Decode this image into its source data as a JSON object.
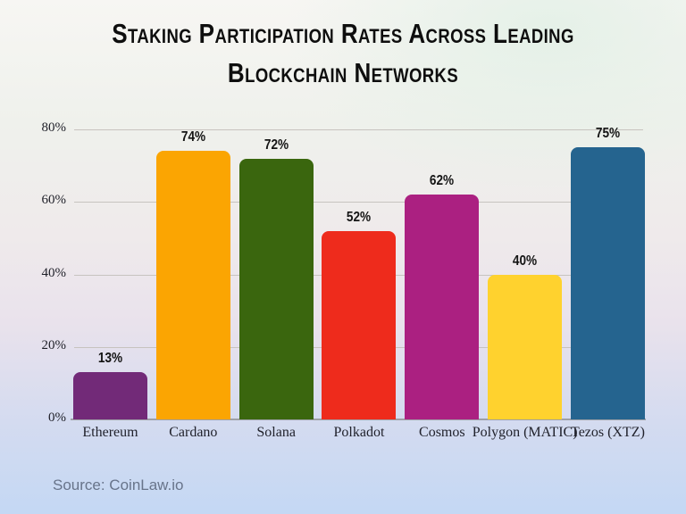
{
  "title": {
    "line1": "Staking Participation Rates Across Leading",
    "line2": "Blockchain Networks"
  },
  "source_note": "Source: CoinLaw.io",
  "chart_data": {
    "type": "bar",
    "title": "Staking Participation Rates Across Leading Blockchain Networks",
    "categories": [
      "Ethereum",
      "Cardano",
      "Solana",
      "Polkadot",
      "Cosmos",
      "Polygon (MATIC)",
      "Tezos (XTZ)"
    ],
    "values": [
      13,
      74,
      72,
      52,
      62,
      40,
      75
    ],
    "value_labels": [
      "13%",
      "74%",
      "72%",
      "52%",
      "62%",
      "40%",
      "75%"
    ],
    "bar_colors": [
      "#722A78",
      "#FBA502",
      "#3A660E",
      "#EE2B1C",
      "#AB2081",
      "#FFD22E",
      "#25648F"
    ],
    "xlabel": "",
    "ylabel": "",
    "ylim": [
      0,
      80
    ],
    "yticks": [
      0,
      20,
      40,
      60,
      80
    ],
    "ytick_labels": [
      "0%",
      "20%",
      "40%",
      "60%",
      "80%"
    ],
    "grid": true,
    "legend": false,
    "colors": {
      "gridline": "#C7C3BF",
      "axis_line": "#9EA0A6",
      "title_text": "#0E0E0E",
      "axis_text": "#21222C",
      "value_text": "#141414",
      "source_text": "#68748A",
      "background_top": "#F7F6F3",
      "background_bottom": "#C4D8F4"
    }
  }
}
